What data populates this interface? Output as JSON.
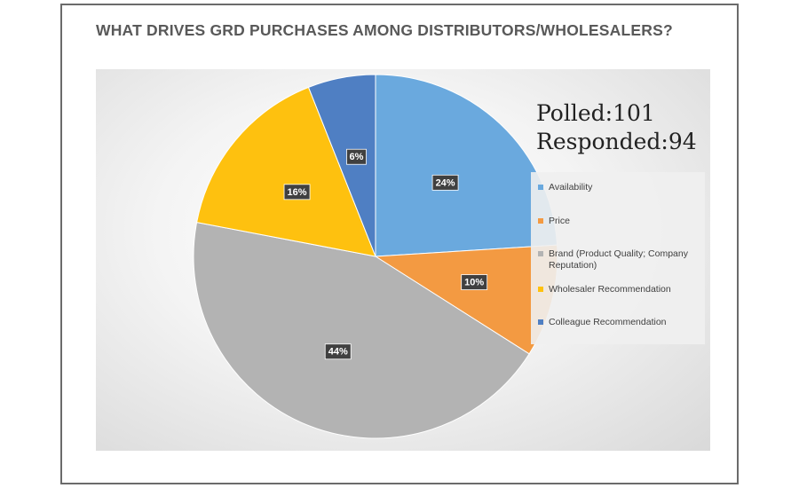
{
  "title": "WHAT DRIVES GRD PURCHASES AMONG DISTRIBUTORS/WHOLESALERS?",
  "stats": {
    "polled": "Polled:101",
    "responded": "Responded:94"
  },
  "chart_data": {
    "type": "pie",
    "title": "WHAT DRIVES GRD PURCHASES AMONG DISTRIBUTORS/WHOLESALERS?",
    "start_angle_deg": 0,
    "direction": "clockwise",
    "legend_position": "right",
    "slices": [
      {
        "label": "Availability",
        "value": 24,
        "display": "24%",
        "color": "#6aa9de"
      },
      {
        "label": "Price",
        "value": 10,
        "display": "10%",
        "color": "#f39a42"
      },
      {
        "label": "Brand (Product Quality; Company Reputation)",
        "value": 44,
        "display": "44%",
        "color": "#b3b3b3"
      },
      {
        "label": "Wholesaler Recommendation",
        "value": 16,
        "display": "16%",
        "color": "#fec10f"
      },
      {
        "label": "Colleague Recommendation",
        "value": 6,
        "display": "6%",
        "color": "#4f7fc3"
      }
    ]
  }
}
